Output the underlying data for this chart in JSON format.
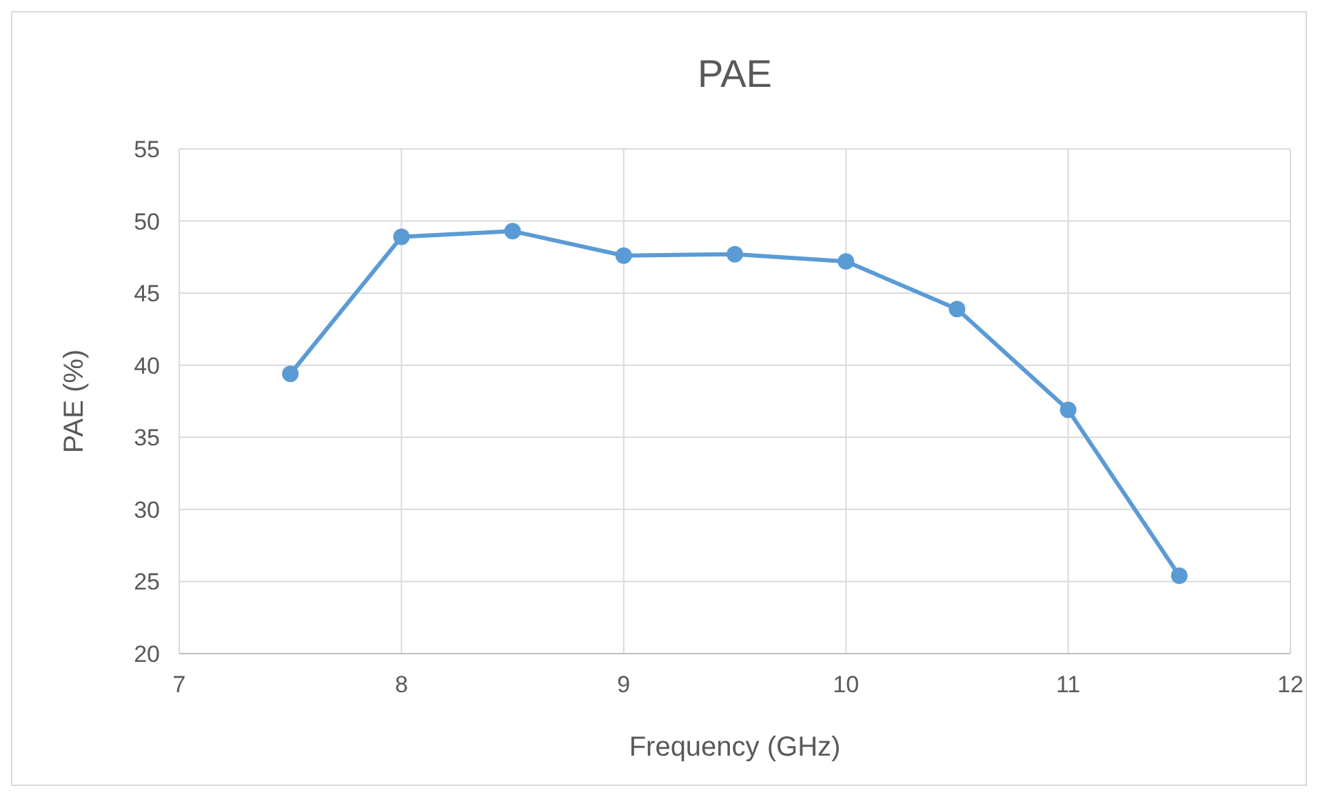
{
  "chart_data": {
    "type": "line",
    "title": "PAE",
    "xlabel": "Frequency (GHz)",
    "ylabel": "PAE (%)",
    "x": [
      7.5,
      8,
      8.5,
      9,
      9.5,
      10,
      10.5,
      11,
      11.5
    ],
    "series": [
      {
        "color": "#5b9bd5",
        "values": [
          39.4,
          48.9,
          49.3,
          47.6,
          47.7,
          47.2,
          43.9,
          36.9,
          25.4
        ]
      }
    ],
    "xlim": [
      7,
      12
    ],
    "xticks": [
      7,
      8,
      9,
      10,
      11,
      12
    ],
    "ylim": [
      20,
      55
    ],
    "yticks": [
      20,
      25,
      30,
      35,
      40,
      45,
      50,
      55
    ],
    "grid": true,
    "marker": "circle",
    "line_style": "solid"
  }
}
